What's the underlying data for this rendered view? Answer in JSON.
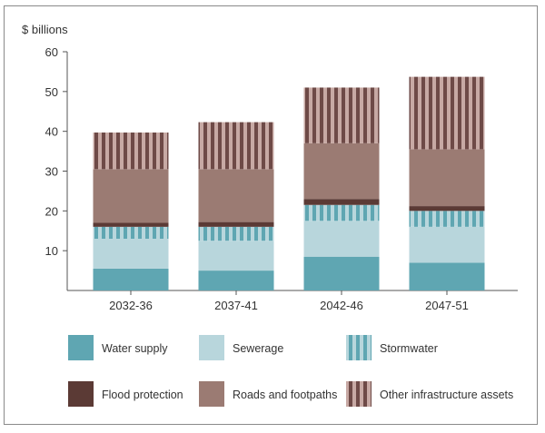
{
  "chart_data": {
    "type": "bar",
    "stacked": true,
    "ylabel": "$ billions",
    "ylim": [
      0,
      60
    ],
    "yticks": [
      10,
      20,
      30,
      40,
      50,
      60
    ],
    "categories": [
      "2032-36",
      "2037-41",
      "2042-46",
      "2047-51"
    ],
    "series": [
      {
        "name": "Water supply",
        "values": [
          5.5,
          5.0,
          8.5,
          7.0
        ],
        "color": "#5fa6b2",
        "pattern": "solid"
      },
      {
        "name": "Sewerage",
        "values": [
          7.5,
          7.5,
          9.0,
          9.0
        ],
        "color": "#b8d6dc",
        "pattern": "solid"
      },
      {
        "name": "Stormwater",
        "values": [
          3.0,
          3.5,
          4.0,
          4.0
        ],
        "color": "#5fa6b2",
        "light": "#b8d6dc",
        "pattern": "stripes"
      },
      {
        "name": "Flood protection",
        "values": [
          1.0,
          1.2,
          1.5,
          1.2
        ],
        "color": "#5b3a35",
        "pattern": "solid"
      },
      {
        "name": "Roads and footpaths",
        "values": [
          13.5,
          13.3,
          14.0,
          14.3
        ],
        "color": "#9b7b73",
        "pattern": "solid"
      },
      {
        "name": "Other infrastructure assets",
        "values": [
          9.2,
          11.8,
          14.0,
          18.2
        ],
        "color": "#6e4a47",
        "light": "#c7a9a4",
        "pattern": "stripes"
      }
    ]
  }
}
